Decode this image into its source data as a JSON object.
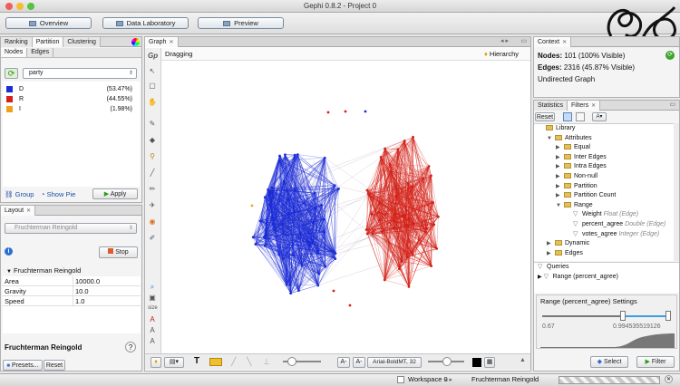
{
  "window": {
    "title": "Gephi 0.8.2 - Project 0"
  },
  "nav": {
    "overview": "Overview",
    "data_laboratory": "Data Laboratory",
    "preview": "Preview"
  },
  "left_top": {
    "tabs": [
      "Ranking",
      "Partition",
      "Clustering"
    ],
    "subtabs": [
      "Nodes",
      "Edges"
    ],
    "partition_value": "party",
    "legend": [
      {
        "label": "D",
        "pct": "(53.47%)",
        "color": "#1b2bd6"
      },
      {
        "label": "R",
        "pct": "(44.55%)",
        "color": "#d32018"
      },
      {
        "label": "I",
        "pct": "(1.98%)",
        "color": "#f1a21a"
      }
    ],
    "group_label": "Group",
    "show_pie_label": "Show Pie",
    "apply_label": "Apply"
  },
  "layout": {
    "tab": "Layout",
    "algorithm_select": "Fruchterman Reingold",
    "stop_label": "Stop",
    "section": "Fruchterman Reingold",
    "props": [
      {
        "k": "Area",
        "v": "10000.0"
      },
      {
        "k": "Gravity",
        "v": "10.0"
      },
      {
        "k": "Speed",
        "v": "1.0"
      }
    ],
    "footer_title": "Fruchterman Reingold",
    "help": "?",
    "presets_label": "Presets...",
    "reset_label": "Reset"
  },
  "graph": {
    "tab": "Graph",
    "status": "Dragging",
    "hierarchy": "Hierarchy",
    "font_label": "Arial-BoldMT, 32",
    "colors": {
      "dem": "#1b2bd6",
      "rep": "#d32018",
      "ind": "#f1a21a"
    }
  },
  "context": {
    "tab": "Context",
    "nodes_label": "Nodes:",
    "nodes_value": "101 (100% Visible)",
    "edges_label": "Edges:",
    "edges_value": "2316 (45.87% Visible)",
    "graph_type": "Undirected Graph"
  },
  "filters": {
    "tabs": [
      "Statistics",
      "Filters"
    ],
    "reset_label": "Reset",
    "tree": [
      {
        "label": "Library",
        "type": "",
        "level": 0,
        "icon": "folder",
        "arrow": ""
      },
      {
        "label": "Attributes",
        "type": "",
        "level": 1,
        "icon": "folder",
        "arrow": "▼"
      },
      {
        "label": "Equal",
        "type": "",
        "level": 2,
        "icon": "folder",
        "arrow": "▶"
      },
      {
        "label": "Inter Edges",
        "type": "",
        "level": 2,
        "icon": "folder",
        "arrow": "▶"
      },
      {
        "label": "Intra Edges",
        "type": "",
        "level": 2,
        "icon": "folder",
        "arrow": "▶"
      },
      {
        "label": "Non-null",
        "type": "",
        "level": 2,
        "icon": "folder",
        "arrow": "▶"
      },
      {
        "label": "Partition",
        "type": "",
        "level": 2,
        "icon": "folder",
        "arrow": "▶"
      },
      {
        "label": "Partition Count",
        "type": "",
        "level": 2,
        "icon": "folder",
        "arrow": "▶"
      },
      {
        "label": "Range",
        "type": "",
        "level": 2,
        "icon": "folder",
        "arrow": "▼"
      },
      {
        "label": "Weight",
        "type": "Float (Edge)",
        "level": 3,
        "icon": "funnel",
        "arrow": ""
      },
      {
        "label": "percent_agree",
        "type": "Double (Edge)",
        "level": 3,
        "icon": "funnel",
        "arrow": ""
      },
      {
        "label": "votes_agree",
        "type": "Integer (Edge)",
        "level": 3,
        "icon": "funnel",
        "arrow": ""
      },
      {
        "label": "Dynamic",
        "type": "",
        "level": 1,
        "icon": "folder",
        "arrow": "▶"
      },
      {
        "label": "Edges",
        "type": "",
        "level": 1,
        "icon": "folder",
        "arrow": "▶"
      }
    ],
    "queries_label": "Queries",
    "query_item": "Range (percent_agree)",
    "settings_title": "Range (percent_agree) Settings",
    "range_min": "0.67",
    "range_max": "0.994535519126",
    "select_label": "Select",
    "filter_label": "Filter"
  },
  "status": {
    "workspace": "Workspace 0",
    "layout_running": "Fruchterman Reingold"
  }
}
